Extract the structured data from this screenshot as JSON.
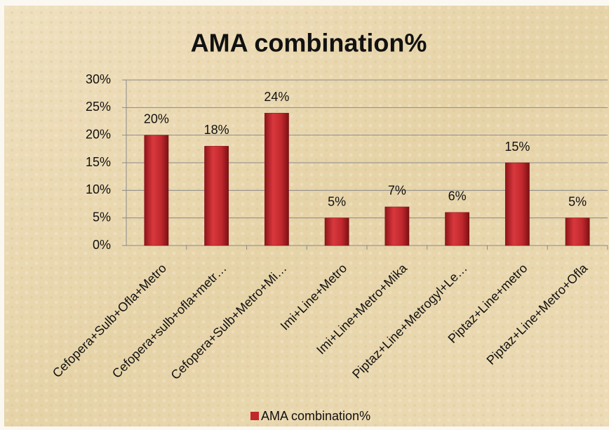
{
  "chart_data": {
    "type": "bar",
    "title": "AMA combination%",
    "categories": [
      "Cefopera+Sulb+Ofla+Metro",
      "Cefopera+sulb+ofla+metr…",
      "Cefopera+Sulb+Metro+Mi…",
      "Imi+Line+Metro",
      "Imi+Line+Metro+Mika",
      "Piptaz+Line+Metrogyl+Le…",
      "Piptaz+Line+metro",
      "Piptaz+Line+Metro+Ofla"
    ],
    "series": [
      {
        "name": "AMA combination%",
        "color": "#c0282d",
        "values": [
          20,
          18,
          24,
          5,
          7,
          6,
          15,
          5
        ],
        "value_labels": [
          "20%",
          "18%",
          "24%",
          "5%",
          "7%",
          "6%",
          "15%",
          "5%"
        ]
      }
    ],
    "ylim": [
      0,
      30
    ],
    "yticks": [
      {
        "value": 0,
        "label": "0%"
      },
      {
        "value": 5,
        "label": "5%"
      },
      {
        "value": 10,
        "label": "10%"
      },
      {
        "value": 15,
        "label": "15%"
      },
      {
        "value": 20,
        "label": "20%"
      },
      {
        "value": 25,
        "label": "25%"
      },
      {
        "value": 30,
        "label": "30%"
      }
    ],
    "grid": true,
    "legend": "bottom"
  }
}
